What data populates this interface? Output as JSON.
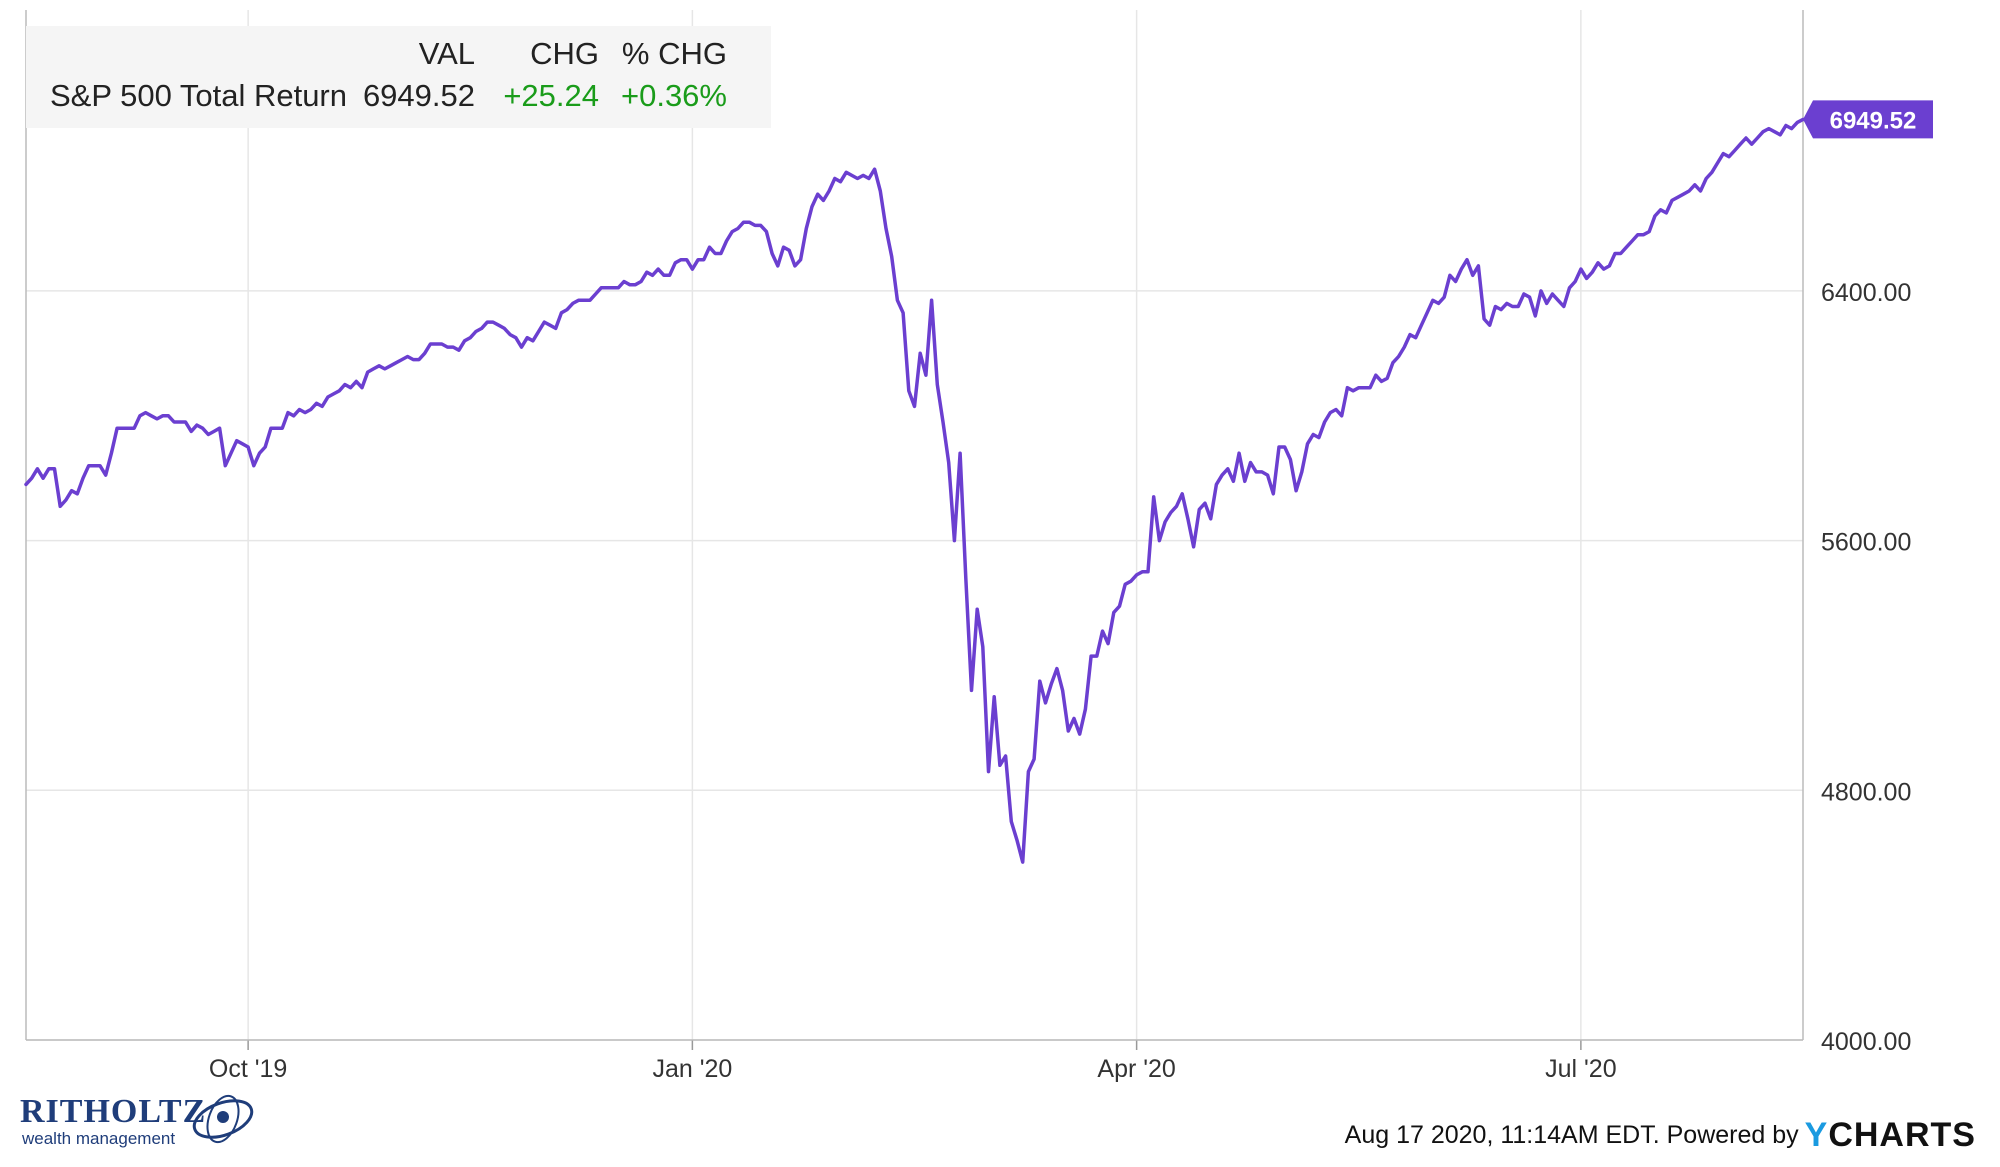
{
  "legend": {
    "headers": [
      "VAL",
      "CHG",
      "% CHG"
    ],
    "series_name": "S&P 500 Total Return",
    "val": "6949.52",
    "chg": "+25.24",
    "pct": "+0.36%"
  },
  "last_value_label": "6949.52",
  "colors": {
    "line": "#6b3fd0",
    "badge": "#6b3fd0",
    "positive": "#1a9c1a",
    "grid": "#e6e6e6"
  },
  "footer": {
    "timestamp": "Aug 17 2020, 11:14AM EDT. Powered by",
    "brand_y": "Y",
    "brand_rest": "CHARTS"
  },
  "logo": {
    "name": "RITHOLTZ",
    "sub": "wealth management"
  },
  "chart_data": {
    "type": "line",
    "series": [
      {
        "name": "S&P 500 Total Return",
        "values": [
          5780,
          5800,
          5830,
          5800,
          5830,
          5830,
          5710,
          5730,
          5760,
          5750,
          5800,
          5840,
          5840,
          5840,
          5810,
          5880,
          5960,
          5960,
          5960,
          5960,
          6000,
          6010,
          6000,
          5990,
          6000,
          6000,
          5980,
          5980,
          5980,
          5950,
          5970,
          5960,
          5940,
          5950,
          5960,
          5840,
          5880,
          5920,
          5910,
          5900,
          5840,
          5880,
          5900,
          5960,
          5960,
          5960,
          6010,
          6000,
          6020,
          6010,
          6020,
          6040,
          6030,
          6060,
          6070,
          6080,
          6100,
          6090,
          6110,
          6090,
          6140,
          6150,
          6160,
          6150,
          6160,
          6170,
          6180,
          6190,
          6180,
          6180,
          6200,
          6230,
          6230,
          6230,
          6220,
          6220,
          6210,
          6240,
          6250,
          6270,
          6280,
          6300,
          6300,
          6290,
          6280,
          6260,
          6250,
          6220,
          6250,
          6240,
          6270,
          6300,
          6290,
          6280,
          6330,
          6340,
          6360,
          6370,
          6370,
          6370,
          6390,
          6410,
          6410,
          6410,
          6410,
          6430,
          6420,
          6420,
          6430,
          6460,
          6450,
          6470,
          6450,
          6450,
          6490,
          6500,
          6500,
          6470,
          6500,
          6500,
          6540,
          6520,
          6520,
          6560,
          6590,
          6600,
          6620,
          6620,
          6610,
          6610,
          6590,
          6520,
          6480,
          6540,
          6530,
          6480,
          6500,
          6600,
          6670,
          6710,
          6690,
          6720,
          6760,
          6750,
          6780,
          6770,
          6760,
          6770,
          6760,
          6790,
          6720,
          6600,
          6510,
          6370,
          6330,
          6080,
          6030,
          6200,
          6130,
          6370,
          6100,
          5980,
          5850,
          5600,
          5880,
          5480,
          5120,
          5380,
          5260,
          4860,
          5100,
          4880,
          4910,
          4700,
          4640,
          4570,
          4860,
          4900,
          5150,
          5080,
          5140,
          5190,
          5120,
          4990,
          5030,
          4980,
          5060,
          5230,
          5230,
          5310,
          5270,
          5370,
          5390,
          5460,
          5470,
          5490,
          5500,
          5500,
          5740,
          5600,
          5660,
          5690,
          5710,
          5750,
          5670,
          5580,
          5700,
          5720,
          5670,
          5780,
          5810,
          5830,
          5790,
          5880,
          5790,
          5850,
          5820,
          5820,
          5810,
          5750,
          5900,
          5900,
          5860,
          5760,
          5820,
          5910,
          5940,
          5930,
          5980,
          6010,
          6020,
          6000,
          6090,
          6080,
          6090,
          6090,
          6090,
          6130,
          6110,
          6120,
          6170,
          6190,
          6220,
          6260,
          6250,
          6290,
          6330,
          6370,
          6360,
          6380,
          6450,
          6430,
          6470,
          6500,
          6450,
          6480,
          6310,
          6290,
          6350,
          6340,
          6360,
          6350,
          6350,
          6390,
          6380,
          6320,
          6400,
          6360,
          6390,
          6370,
          6350,
          6410,
          6430,
          6470,
          6440,
          6460,
          6490,
          6470,
          6480,
          6520,
          6520,
          6540,
          6560,
          6580,
          6580,
          6590,
          6640,
          6660,
          6650,
          6690,
          6700,
          6710,
          6720,
          6740,
          6720,
          6760,
          6780,
          6810,
          6840,
          6830,
          6850,
          6870,
          6890,
          6870,
          6890,
          6910,
          6920,
          6910,
          6900,
          6930,
          6920,
          6940,
          6949.52
        ]
      }
    ],
    "x_ticks": [
      "Oct '19",
      "Jan '20",
      "Apr '20",
      "Jul '20"
    ],
    "y_ticks": [
      "4000.00",
      "4800.00",
      "5600.00",
      "6400.00"
    ],
    "ylim": [
      4000,
      7300
    ],
    "grid": true,
    "legend_position": "top-left"
  }
}
